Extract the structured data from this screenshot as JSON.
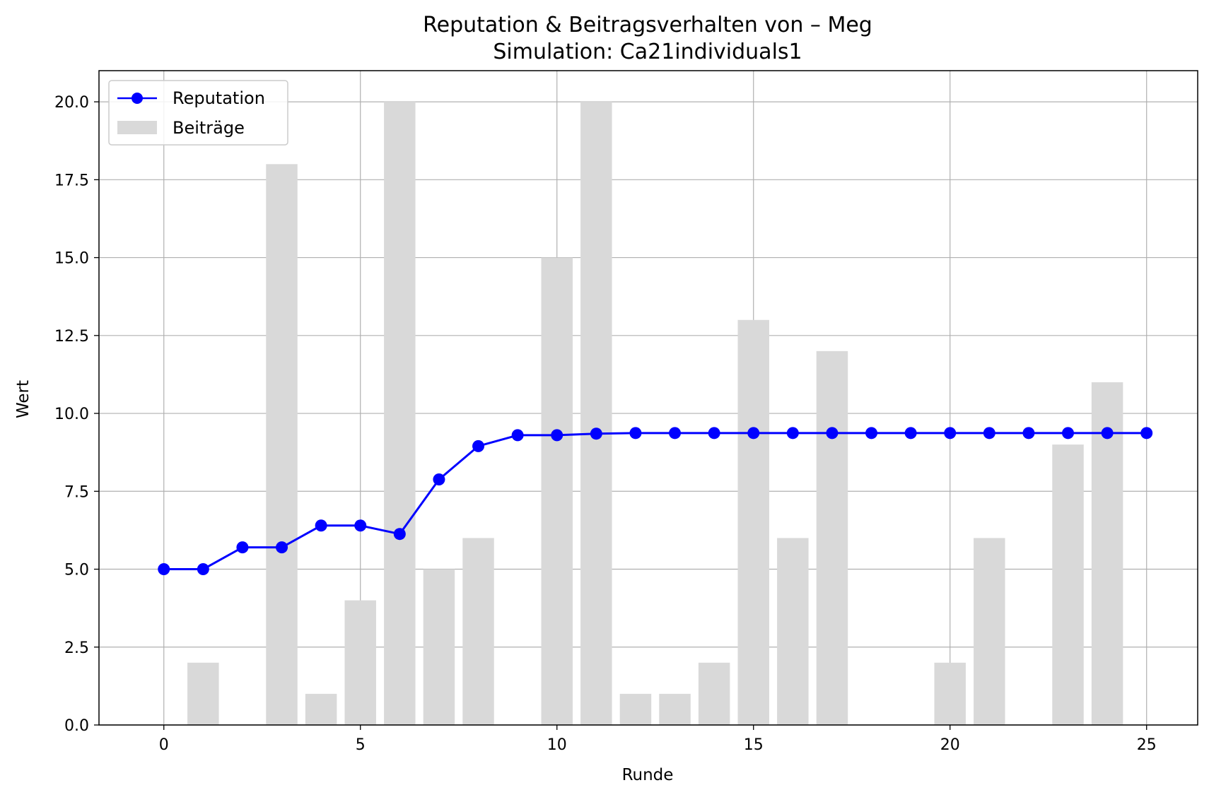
{
  "chart_data": {
    "type": "bar",
    "title": "Reputation & Beitragsverhalten von – Meg",
    "subtitle": "Simulation: Ca21individuals1",
    "xlabel": "Runde",
    "ylabel": "Wert",
    "xlim": [
      -1.65,
      26.3
    ],
    "ylim": [
      0,
      21
    ],
    "x_ticks": [
      0,
      5,
      10,
      15,
      20,
      25
    ],
    "x_tick_labels": [
      "0",
      "5",
      "10",
      "15",
      "20",
      "25"
    ],
    "y_ticks": [
      0,
      2.5,
      5,
      7.5,
      10,
      12.5,
      15,
      17.5,
      20
    ],
    "y_tick_labels": [
      "0.0",
      "2.5",
      "5.0",
      "7.5",
      "10.0",
      "12.5",
      "15.0",
      "17.5",
      "20.0"
    ],
    "grid": true,
    "legend_position": "top-left",
    "x": [
      0,
      1,
      2,
      3,
      4,
      5,
      6,
      7,
      8,
      9,
      10,
      11,
      12,
      13,
      14,
      15,
      16,
      17,
      18,
      19,
      20,
      21,
      22,
      23,
      24,
      25
    ],
    "series": [
      {
        "name": "Beiträge",
        "type": "bar",
        "color": "#d9d9d9",
        "values": [
          0,
          2,
          0,
          18,
          1,
          4,
          20,
          5,
          6,
          0,
          15,
          20,
          1,
          1,
          2,
          13,
          6,
          12,
          0,
          0,
          2,
          6,
          0,
          9,
          11,
          0
        ]
      },
      {
        "name": "Reputation",
        "type": "line",
        "color": "#0000ff",
        "marker": "circle",
        "values": [
          5.0,
          5.0,
          5.7,
          5.7,
          6.4,
          6.4,
          6.13,
          7.88,
          8.95,
          9.3,
          9.3,
          9.35,
          9.37,
          9.37,
          9.37,
          9.37,
          9.37,
          9.37,
          9.37,
          9.37,
          9.37,
          9.37,
          9.37,
          9.37,
          9.37,
          9.37
        ]
      }
    ]
  }
}
